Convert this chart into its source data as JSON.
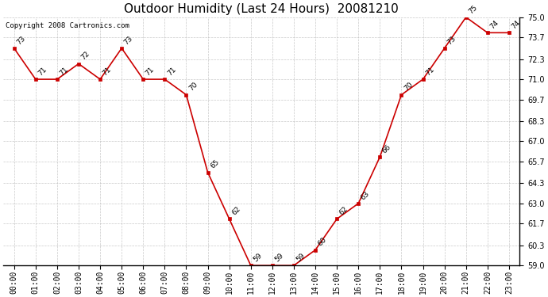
{
  "title": "Outdoor Humidity (Last 24 Hours)  20081210",
  "copyright": "Copyright 2008 Cartronics.com",
  "x_labels": [
    "00:00",
    "01:00",
    "02:00",
    "03:00",
    "04:00",
    "05:00",
    "06:00",
    "07:00",
    "08:00",
    "09:00",
    "10:00",
    "11:00",
    "12:00",
    "13:00",
    "14:00",
    "15:00",
    "16:00",
    "17:00",
    "18:00",
    "19:00",
    "20:00",
    "21:00",
    "22:00",
    "23:00"
  ],
  "y_values": [
    73,
    71,
    71,
    72,
    71,
    73,
    71,
    71,
    70,
    65,
    62,
    59,
    59,
    59,
    60,
    62,
    63,
    66,
    70,
    71,
    73,
    75,
    74,
    74
  ],
  "ylim": [
    59.0,
    75.0
  ],
  "yticks": [
    59.0,
    60.3,
    61.7,
    63.0,
    64.3,
    65.7,
    67.0,
    68.3,
    69.7,
    71.0,
    72.3,
    73.7,
    75.0
  ],
  "line_color": "#cc0000",
  "marker_color": "#cc0000",
  "bg_color": "#ffffff",
  "grid_color": "#bbbbbb",
  "title_fontsize": 11,
  "label_fontsize": 7,
  "point_label_fontsize": 6.5,
  "copyright_fontsize": 6.5
}
